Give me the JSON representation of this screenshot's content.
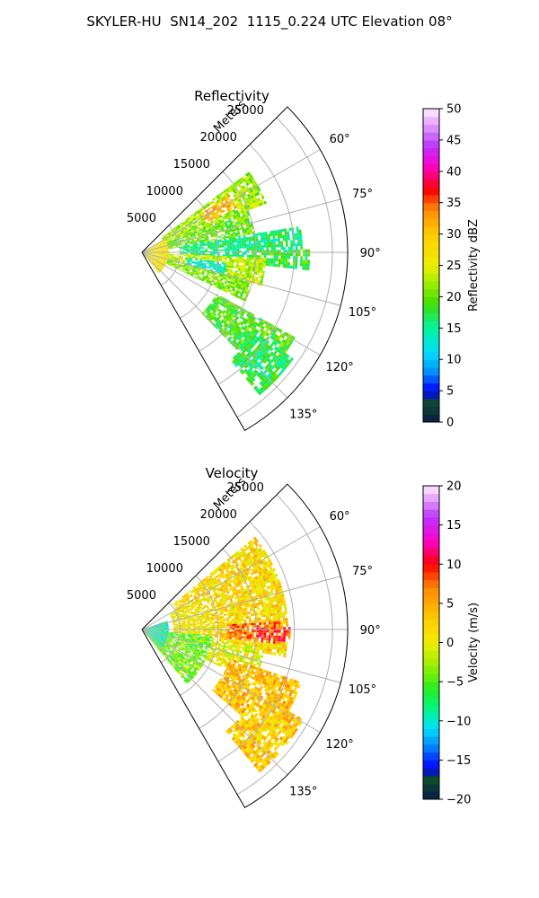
{
  "figure": {
    "title": "SKYLER-HU  SN14_202  1115_0.224 UTC Elevation 08°"
  },
  "chart_data": [
    {
      "type": "heatmap",
      "title": "Reflectivity",
      "radial_label": "Meters",
      "radial_ticks": [
        5000,
        10000,
        15000,
        20000,
        25000
      ],
      "radial_tick_labels": [
        "5000",
        "10000",
        "15000",
        "20000",
        "25000"
      ],
      "range_max_m": 27000,
      "azimuth_range_deg": [
        45,
        150
      ],
      "azimuth_ticks": [
        60,
        75,
        90,
        105,
        120,
        135
      ],
      "azimuth_tick_labels": [
        "60°",
        "75°",
        "90°",
        "105°",
        "120°",
        "135°"
      ],
      "grid": true,
      "colorbar": {
        "label": "Reflectivity dBZ",
        "range": [
          0,
          50
        ],
        "ticks": [
          0,
          5,
          10,
          15,
          20,
          25,
          30,
          35,
          40,
          45,
          50
        ],
        "tick_labels": [
          "0",
          "5",
          "10",
          "15",
          "20",
          "25",
          "30",
          "35",
          "40",
          "45",
          "50"
        ]
      },
      "color_stops": [
        {
          "value": 0,
          "color": "#0b1a4a"
        },
        {
          "value": 3,
          "color": "#0d4a2a"
        },
        {
          "value": 5,
          "color": "#0000ff"
        },
        {
          "value": 8,
          "color": "#0090ff"
        },
        {
          "value": 11,
          "color": "#00ddff"
        },
        {
          "value": 15,
          "color": "#00f5a0"
        },
        {
          "value": 19,
          "color": "#44dd00"
        },
        {
          "value": 22,
          "color": "#99ee00"
        },
        {
          "value": 25,
          "color": "#eeee00"
        },
        {
          "value": 30,
          "color": "#ffcc00"
        },
        {
          "value": 34,
          "color": "#ff8800"
        },
        {
          "value": 37,
          "color": "#ff0000"
        },
        {
          "value": 41,
          "color": "#ff00cc"
        },
        {
          "value": 44,
          "color": "#bb33ff"
        },
        {
          "value": 50,
          "color": "#ffeeff"
        }
      ],
      "regions": [
        {
          "az": [
            52,
            68
          ],
          "r": [
            3000,
            17500
          ],
          "value": 22
        },
        {
          "az": [
            56,
            64
          ],
          "r": [
            9000,
            13500
          ],
          "value": 31
        },
        {
          "az": [
            68,
            82
          ],
          "r": [
            2000,
            15000
          ],
          "value": 20
        },
        {
          "az": [
            80,
            92
          ],
          "r": [
            5000,
            21000
          ],
          "value": 16
        },
        {
          "az": [
            88,
            96
          ],
          "r": [
            14000,
            22000
          ],
          "value": 18
        },
        {
          "az": [
            92,
            105
          ],
          "r": [
            1000,
            16000
          ],
          "value": 23
        },
        {
          "az": [
            97,
            104
          ],
          "r": [
            6000,
            11000
          ],
          "value": 13
        },
        {
          "az": [
            104,
            115
          ],
          "r": [
            3000,
            15000
          ],
          "value": 21
        },
        {
          "az": [
            118,
            135
          ],
          "r": [
            11000,
            23000
          ],
          "value": 19
        },
        {
          "az": [
            125,
            140
          ],
          "r": [
            18000,
            24000
          ],
          "value": 17
        },
        {
          "az": [
            60,
            140
          ],
          "r": [
            0,
            3500
          ],
          "value": 27
        }
      ]
    },
    {
      "type": "heatmap",
      "title": "Velocity",
      "radial_label": "Meters",
      "radial_ticks": [
        5000,
        10000,
        15000,
        20000,
        25000
      ],
      "radial_tick_labels": [
        "5000",
        "10000",
        "15000",
        "20000",
        "25000"
      ],
      "range_max_m": 27000,
      "azimuth_range_deg": [
        45,
        150
      ],
      "azimuth_ticks": [
        60,
        75,
        90,
        105,
        120,
        135
      ],
      "azimuth_tick_labels": [
        "60°",
        "75°",
        "90°",
        "105°",
        "120°",
        "135°"
      ],
      "grid": true,
      "colorbar": {
        "label": "Velocity (m/s)",
        "range": [
          -20,
          20
        ],
        "ticks": [
          -20,
          -15,
          -10,
          -5,
          0,
          5,
          10,
          15,
          20
        ],
        "tick_labels": [
          "−20",
          "−15",
          "−10",
          "−5",
          "0",
          "5",
          "10",
          "15",
          "20"
        ]
      },
      "color_stops": [
        {
          "value": -20,
          "color": "#0b1a4a"
        },
        {
          "value": -17.5,
          "color": "#0d4a2a"
        },
        {
          "value": -16,
          "color": "#0000ff"
        },
        {
          "value": -13,
          "color": "#0090ff"
        },
        {
          "value": -11,
          "color": "#00ddff"
        },
        {
          "value": -9,
          "color": "#00f5a0"
        },
        {
          "value": -6,
          "color": "#22ee22"
        },
        {
          "value": -3,
          "color": "#99ee00"
        },
        {
          "value": 0,
          "color": "#eeee00"
        },
        {
          "value": 3,
          "color": "#ffcc00"
        },
        {
          "value": 7,
          "color": "#ff8800"
        },
        {
          "value": 10,
          "color": "#ff0000"
        },
        {
          "value": 13,
          "color": "#ff00cc"
        },
        {
          "value": 16,
          "color": "#bb33ff"
        },
        {
          "value": 20,
          "color": "#ffeeff"
        }
      ],
      "regions": [
        {
          "az": [
            50,
            100
          ],
          "r": [
            5000,
            19000
          ],
          "value": 2
        },
        {
          "az": [
            60,
            100
          ],
          "r": [
            4000,
            9000
          ],
          "value": 1
        },
        {
          "az": [
            86,
            96
          ],
          "r": [
            11000,
            18000
          ],
          "value": 7
        },
        {
          "az": [
            88,
            94
          ],
          "r": [
            15000,
            19500
          ],
          "value": 9
        },
        {
          "az": [
            98,
            115
          ],
          "r": [
            3000,
            16000
          ],
          "value": 0
        },
        {
          "az": [
            108,
            130
          ],
          "r": [
            12000,
            22000
          ],
          "value": 4
        },
        {
          "az": [
            118,
            140
          ],
          "r": [
            17000,
            24000
          ],
          "value": 3
        },
        {
          "az": [
            95,
            140
          ],
          "r": [
            0,
            9000
          ],
          "value": -4
        },
        {
          "az": [
            70,
            130
          ],
          "r": [
            0,
            3500
          ],
          "value": -9
        }
      ]
    }
  ]
}
